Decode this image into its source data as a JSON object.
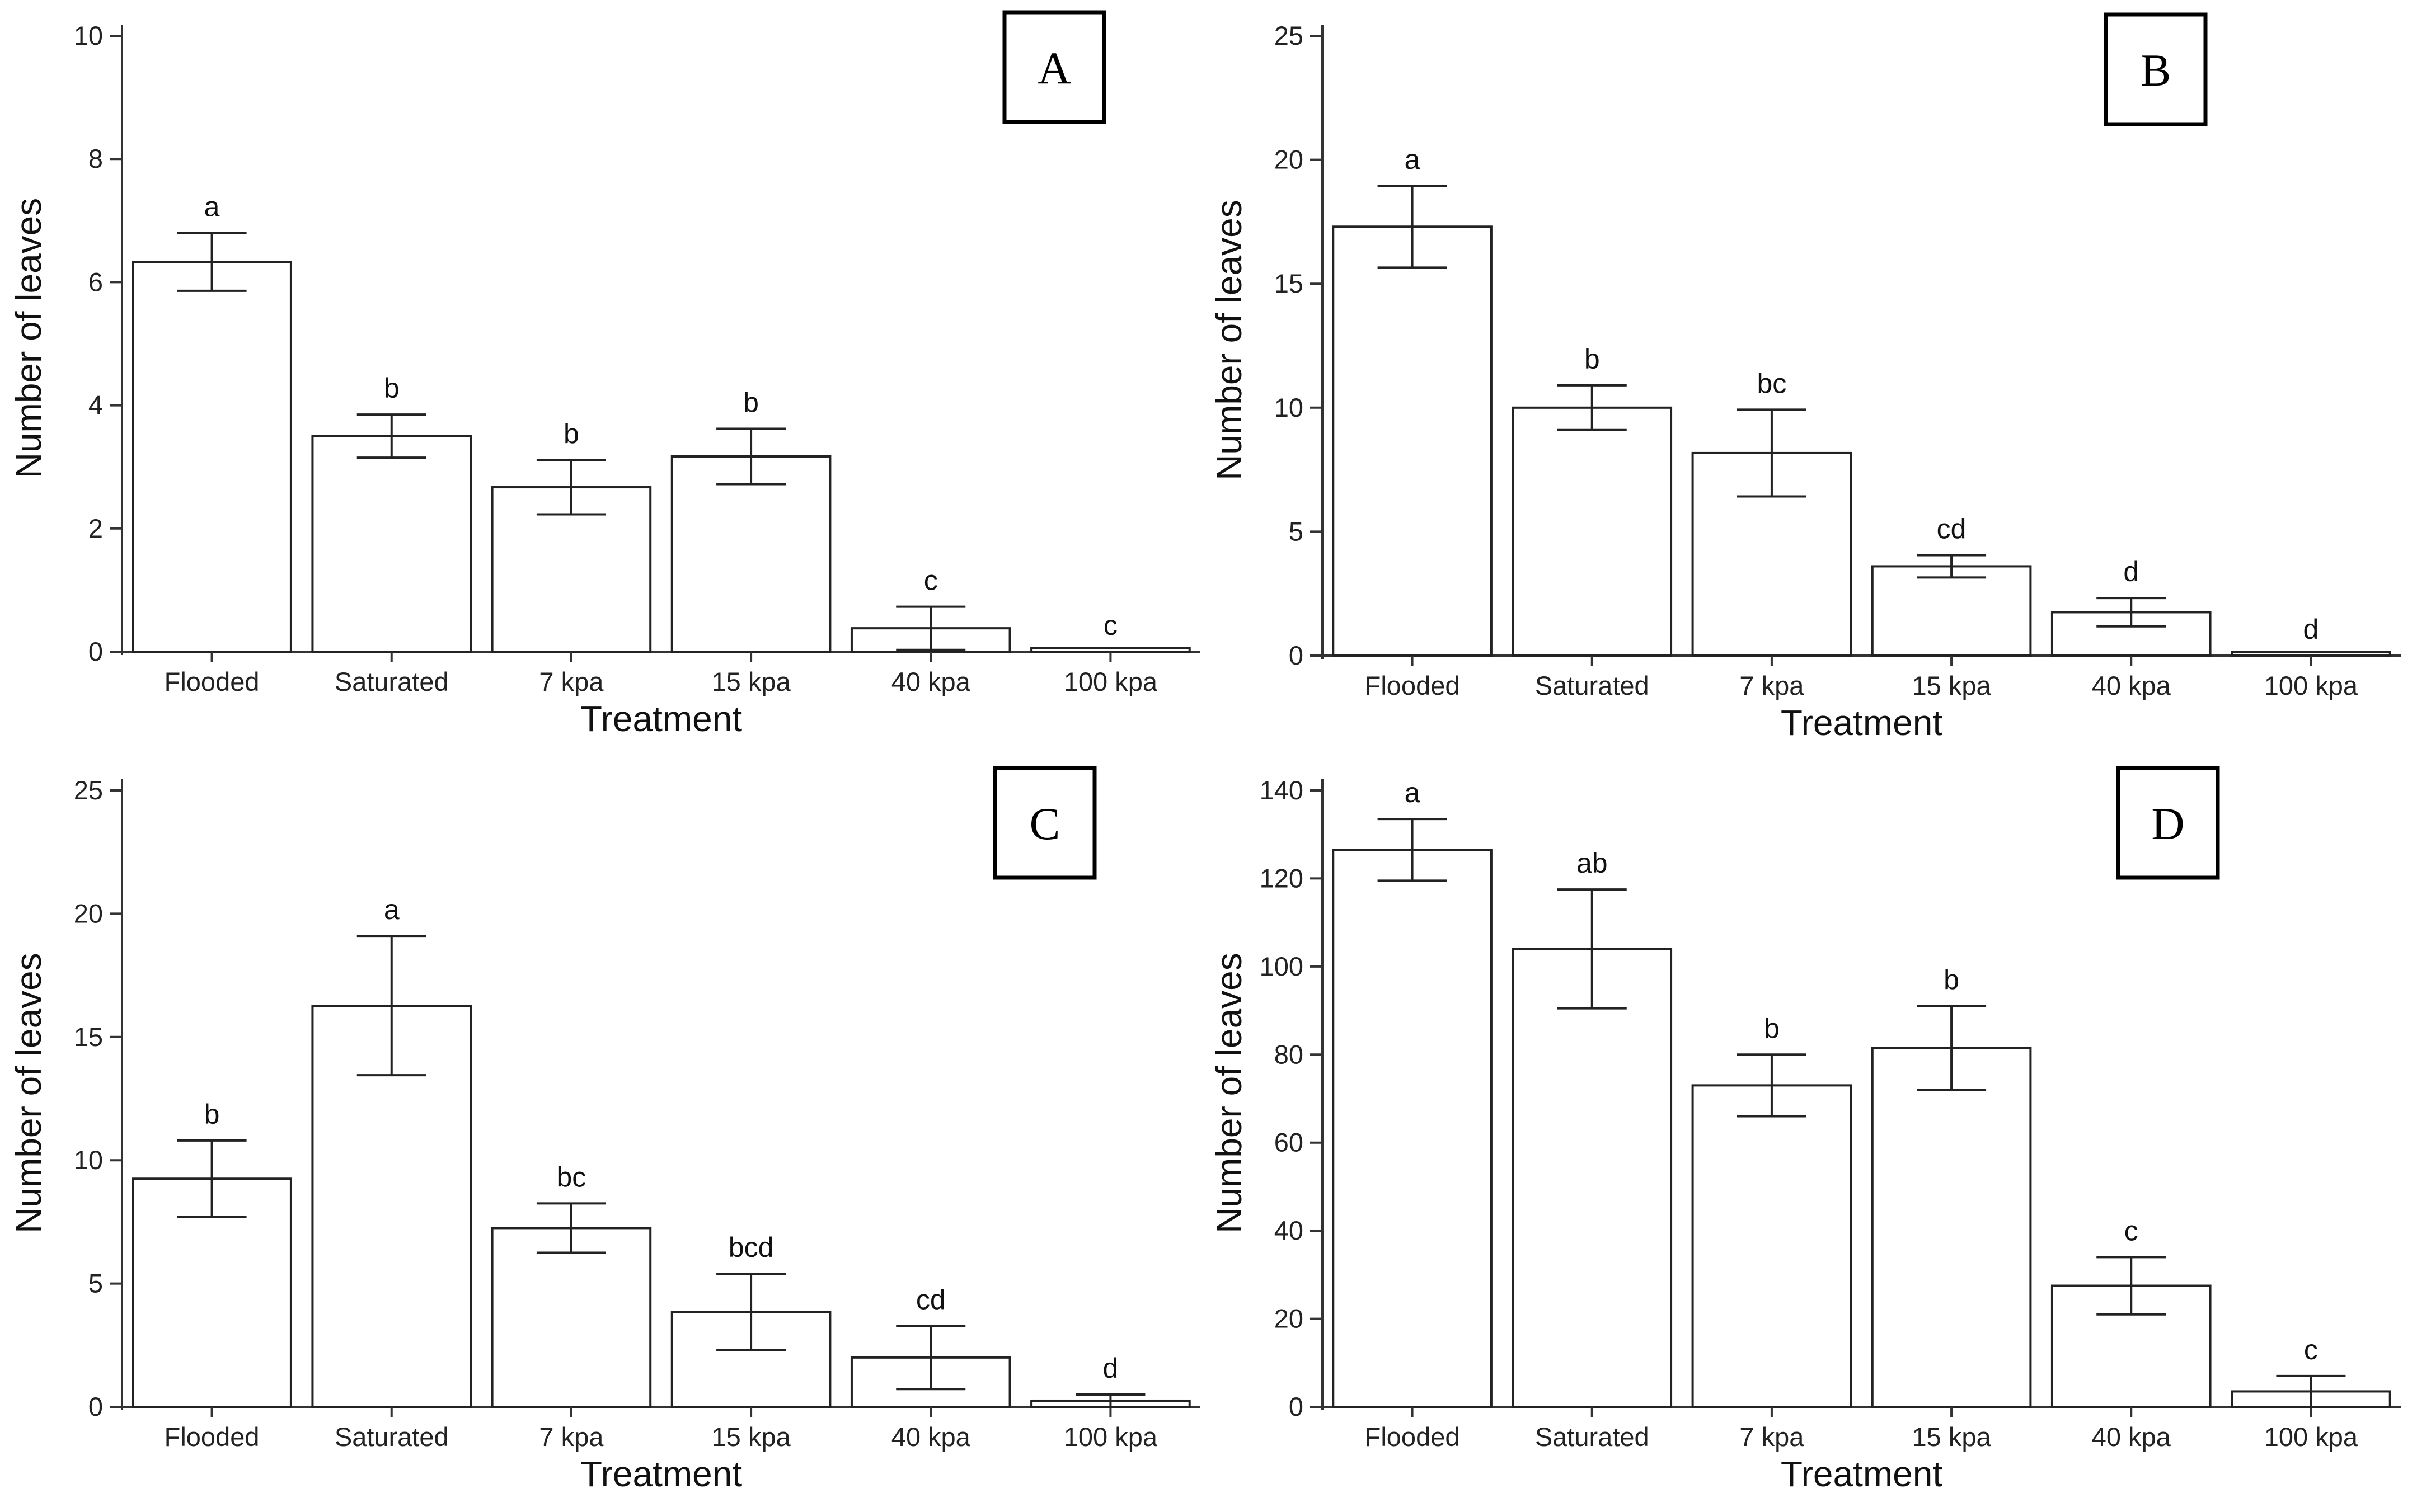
{
  "chart_data": [
    {
      "type": "bar",
      "panel_label": "A",
      "xlabel": "Treatment",
      "ylabel": "Number of leaves",
      "ylim": [
        0,
        10
      ],
      "yticks": [
        0,
        2,
        4,
        6,
        8,
        10
      ],
      "categories": [
        "Flooded",
        "Saturated",
        "7 kpa",
        "15 kpa",
        "40 kpa",
        "100 kpa"
      ],
      "values": [
        6.33,
        3.5,
        2.67,
        3.17,
        0.38,
        0.0
      ],
      "error_low": [
        5.86,
        3.15,
        2.23,
        2.72,
        0.03,
        0.0
      ],
      "error_high": [
        6.8,
        3.85,
        3.11,
        3.62,
        0.73,
        0.0
      ],
      "significance": [
        "a",
        "b",
        "b",
        "b",
        "c",
        "c"
      ]
    },
    {
      "type": "bar",
      "panel_label": "B",
      "xlabel": "Treatment",
      "ylabel": "Number of leaves",
      "ylim": [
        0,
        25
      ],
      "yticks": [
        0,
        5,
        10,
        15,
        20,
        25
      ],
      "categories": [
        "Flooded",
        "Saturated",
        "7 kpa",
        "15 kpa",
        "40 kpa",
        "100 kpa"
      ],
      "values": [
        17.3,
        10.0,
        8.17,
        3.6,
        1.75,
        0.0
      ],
      "error_low": [
        15.65,
        9.1,
        6.42,
        3.15,
        1.18,
        0.0
      ],
      "error_high": [
        18.95,
        10.9,
        9.92,
        4.05,
        2.32,
        0.0
      ],
      "significance": [
        "a",
        "b",
        "bc",
        "cd",
        "d",
        "d"
      ]
    },
    {
      "type": "bar",
      "panel_label": "C",
      "xlabel": "Treatment",
      "ylabel": "Number of leaves",
      "ylim": [
        0,
        25
      ],
      "yticks": [
        0,
        5,
        10,
        15,
        20,
        25
      ],
      "categories": [
        "Flooded",
        "Saturated",
        "7 kpa",
        "15 kpa",
        "40 kpa",
        "100 kpa"
      ],
      "values": [
        9.25,
        16.25,
        7.25,
        3.85,
        2.0,
        0.25
      ],
      "error_low": [
        7.7,
        13.45,
        6.25,
        2.3,
        0.72,
        0.0
      ],
      "error_high": [
        10.8,
        19.1,
        8.25,
        5.4,
        3.28,
        0.5
      ],
      "significance": [
        "b",
        "a",
        "bc",
        "bcd",
        "cd",
        "d"
      ]
    },
    {
      "type": "bar",
      "panel_label": "D",
      "xlabel": "Treatment",
      "ylabel": "Number of leaves",
      "ylim": [
        0,
        140
      ],
      "yticks": [
        0,
        20,
        40,
        60,
        80,
        100,
        120,
        140
      ],
      "categories": [
        "Flooded",
        "Saturated",
        "7 kpa",
        "15 kpa",
        "40 kpa",
        "100 kpa"
      ],
      "values": [
        126.5,
        104.0,
        73.0,
        81.5,
        27.5,
        3.5
      ],
      "error_low": [
        119.5,
        90.5,
        66.0,
        72.0,
        21.0,
        0.0
      ],
      "error_high": [
        133.5,
        117.5,
        80.0,
        91.0,
        34.0,
        7.0
      ],
      "significance": [
        "a",
        "ab",
        "b",
        "b",
        "c",
        "c"
      ]
    }
  ]
}
